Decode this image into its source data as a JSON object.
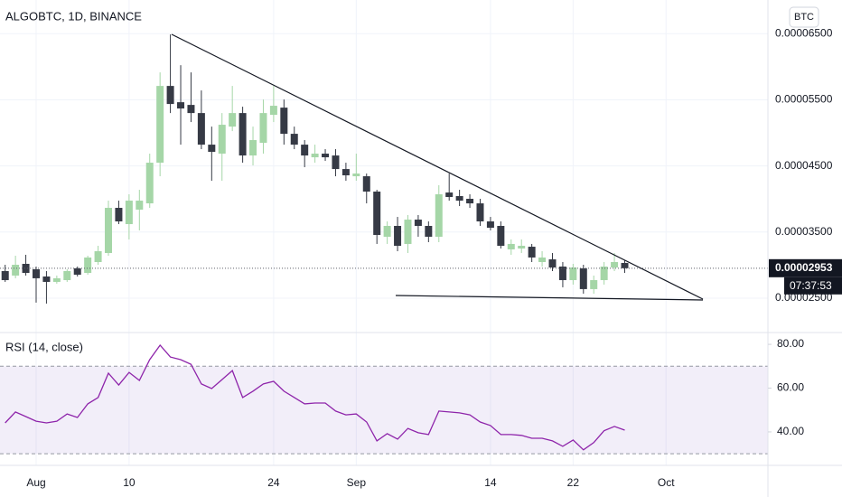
{
  "chart_data": [
    {
      "type": "candlestick",
      "title": "ALGOBTC, 1D, BINANCE",
      "currency": "BTC",
      "x": [
        "Jul 29",
        "Jul 30",
        "Jul 31",
        "Aug 1",
        "Aug 2",
        "Aug 3",
        "Aug 4",
        "Aug 5",
        "Aug 6",
        "Aug 7",
        "Aug 8",
        "Aug 9",
        "Aug 10",
        "Aug 11",
        "Aug 12",
        "Aug 13",
        "Aug 14",
        "Aug 15",
        "Aug 16",
        "Aug 17",
        "Aug 18",
        "Aug 19",
        "Aug 20",
        "Aug 21",
        "Aug 22",
        "Aug 23",
        "Aug 24",
        "Aug 25",
        "Aug 26",
        "Aug 27",
        "Aug 28",
        "Aug 29",
        "Aug 30",
        "Aug 31",
        "Sep 1",
        "Sep 2",
        "Sep 3",
        "Sep 4",
        "Sep 5",
        "Sep 6",
        "Sep 7",
        "Sep 8",
        "Sep 9",
        "Sep 10",
        "Sep 11",
        "Sep 12",
        "Sep 13",
        "Sep 14",
        "Sep 15",
        "Sep 16",
        "Sep 17",
        "Sep 18",
        "Sep 19",
        "Sep 20",
        "Sep 21",
        "Sep 22",
        "Sep 23",
        "Sep 24",
        "Sep 25",
        "Sep 26",
        "Sep 27"
      ],
      "open": [
        2.91e-05,
        2.842e-05,
        3.019e-05,
        2.937e-05,
        2.828e-05,
        2.746e-05,
        2.773e-05,
        2.951e-05,
        2.882e-05,
        3.046e-05,
        3.183e-05,
        3.866e-05,
        3.62e-05,
        3.839e-05,
        3.934e-05,
        4.549e-05,
        5.71e-05,
        5.464e-05,
        5.423e-05,
        5.3e-05,
        4.822e-05,
        4.686e-05,
        5.095e-05,
        5.3e-05,
        4.658e-05,
        4.85e-05,
        5.273e-05,
        5.382e-05,
        4.986e-05,
        4.822e-05,
        4.631e-05,
        4.686e-05,
        4.658e-05,
        4.453e-05,
        4.344e-05,
        4.344e-05,
        4.112e-05,
        3.429e-05,
        3.593e-05,
        3.32e-05,
        3.688e-05,
        3.593e-05,
        3.429e-05,
        4.098e-05,
        4.044e-05,
        4.003e-05,
        3.934e-05,
        3.661e-05,
        3.593e-05,
        3.238e-05,
        3.251e-05,
        3.278e-05,
        3.046e-05,
        3.087e-05,
        2.978e-05,
        2.773e-05,
        2.951e-05,
        2.637e-05,
        2.773e-05,
        2.964e-05,
        3.033e-05
      ],
      "high": [
        3.005e-05,
        3.142e-05,
        3.156e-05,
        2.978e-05,
        2.91e-05,
        2.842e-05,
        2.937e-05,
        2.978e-05,
        3.142e-05,
        3.292e-05,
        3.975e-05,
        3.975e-05,
        4.071e-05,
        4.139e-05,
        4.686e-05,
        5.915e-05,
        6.489e-05,
        6.024e-05,
        5.915e-05,
        5.642e-05,
        5.095e-05,
        5.3e-05,
        5.71e-05,
        5.396e-05,
        5.095e-05,
        5.505e-05,
        5.71e-05,
        5.505e-05,
        5.095e-05,
        4.891e-05,
        4.822e-05,
        4.754e-05,
        4.754e-05,
        4.549e-05,
        4.686e-05,
        4.385e-05,
        4.139e-05,
        3.661e-05,
        3.729e-05,
        3.757e-05,
        3.757e-05,
        3.661e-05,
        4.208e-05,
        4.385e-05,
        4.139e-05,
        4.071e-05,
        4.003e-05,
        3.729e-05,
        3.661e-05,
        3.388e-05,
        3.388e-05,
        3.32e-05,
        3.21e-05,
        3.183e-05,
        3.046e-05,
        3.019e-05,
        3.005e-05,
        2.842e-05,
        3.046e-05,
        3.183e-05,
        3.074e-05
      ],
      "low": [
        2.746e-05,
        2.801e-05,
        2.842e-05,
        2.432e-05,
        2.418e-05,
        2.719e-05,
        2.746e-05,
        2.828e-05,
        2.855e-05,
        3.005e-05,
        3.142e-05,
        3.62e-05,
        3.388e-05,
        3.525e-05,
        3.866e-05,
        4.344e-05,
        5.3e-05,
        4.822e-05,
        5.164e-05,
        4.754e-05,
        4.276e-05,
        4.276e-05,
        5.027e-05,
        4.549e-05,
        4.508e-05,
        4.686e-05,
        5.164e-05,
        4.822e-05,
        4.754e-05,
        4.481e-05,
        4.549e-05,
        4.576e-05,
        4.344e-05,
        4.276e-05,
        4.276e-05,
        3.934e-05,
        3.32e-05,
        3.32e-05,
        3.21e-05,
        3.183e-05,
        3.429e-05,
        3.347e-05,
        3.347e-05,
        3.975e-05,
        3.893e-05,
        3.866e-05,
        3.593e-05,
        3.525e-05,
        3.251e-05,
        3.156e-05,
        3.183e-05,
        3.046e-05,
        2.978e-05,
        2.91e-05,
        2.664e-05,
        2.705e-05,
        2.568e-05,
        2.568e-05,
        2.705e-05,
        2.91e-05,
        2.882e-05
      ],
      "close": [
        2.773e-05,
        3.005e-05,
        2.882e-05,
        2.801e-05,
        2.746e-05,
        2.801e-05,
        2.91e-05,
        2.855e-05,
        3.115e-05,
        3.21e-05,
        3.866e-05,
        3.661e-05,
        3.975e-05,
        3.975e-05,
        4.549e-05,
        5.71e-05,
        5.437e-05,
        5.369e-05,
        5.3e-05,
        4.822e-05,
        4.713e-05,
        5.123e-05,
        5.3e-05,
        4.658e-05,
        4.891e-05,
        5.3e-05,
        5.41e-05,
        4.986e-05,
        4.822e-05,
        4.658e-05,
        4.686e-05,
        4.631e-05,
        4.453e-05,
        4.358e-05,
        4.385e-05,
        4.112e-05,
        3.456e-05,
        3.593e-05,
        3.292e-05,
        3.688e-05,
        3.593e-05,
        3.429e-05,
        4.071e-05,
        4.03e-05,
        3.975e-05,
        3.934e-05,
        3.661e-05,
        3.565e-05,
        3.292e-05,
        3.32e-05,
        3.292e-05,
        3.115e-05,
        3.115e-05,
        2.964e-05,
        2.773e-05,
        2.964e-05,
        2.637e-05,
        2.773e-05,
        2.978e-05,
        3.046e-05,
        2.953e-05
      ],
      "up_color": "#a5d6a7",
      "down_color": "#363a45",
      "ylim": [
        1.98e-05,
        7.01e-05
      ],
      "yticks": [
        {
          "value": 6.5e-05,
          "label": "0.00006500"
        },
        {
          "value": 5.5e-05,
          "label": "0.00005500"
        },
        {
          "value": 4.5e-05,
          "label": "0.00004500"
        },
        {
          "value": 3.5e-05,
          "label": "0.00003500"
        },
        {
          "value": 2.5e-05,
          "label": "0.00002500"
        }
      ],
      "last_price": {
        "value": 2.953e-05,
        "label": "0.00002953"
      },
      "countdown": "07:37:53",
      "xticks": [
        {
          "value": "Aug 1",
          "label": "Aug"
        },
        {
          "value": "Aug 10",
          "label": "10"
        },
        {
          "value": "Aug 24",
          "label": "24"
        },
        {
          "value": "Sep 1",
          "label": "Sep"
        },
        {
          "value": "Sep 14",
          "label": "14"
        },
        {
          "value": "Sep 22",
          "label": "22"
        },
        {
          "value": "Oct 1",
          "label": "Oct"
        }
      ],
      "grid": true
    },
    {
      "type": "line",
      "title": "RSI (14, close)",
      "color": "#8e24aa",
      "values": [
        44.1,
        49.1,
        47,
        44.9,
        44.1,
        44.9,
        48.2,
        46.6,
        52.8,
        55.7,
        66.8,
        61.4,
        67.2,
        63.5,
        73,
        79.6,
        74.2,
        73,
        70.9,
        61.9,
        59.8,
        63.9,
        68,
        55.7,
        58.6,
        61.9,
        63.1,
        58.6,
        55.7,
        52.8,
        53.2,
        53.2,
        49.5,
        47.8,
        48.2,
        44.5,
        35.9,
        39.2,
        36.7,
        41.6,
        39.6,
        38.8,
        49.5,
        49.1,
        48.7,
        47.8,
        44.5,
        42.9,
        38.8,
        38.8,
        38.4,
        37.1,
        37.1,
        35.9,
        33.4,
        36.3,
        31.8,
        35.1,
        40.5,
        42.5,
        40.8
      ],
      "band": [
        30,
        70
      ],
      "band_color": "#7e57c2",
      "ylim": [
        24.7,
        85.4
      ],
      "yticks": [
        {
          "value": 80,
          "label": "80.00"
        },
        {
          "value": 60,
          "label": "60.00"
        },
        {
          "value": 40,
          "label": "40.00"
        }
      ]
    }
  ]
}
